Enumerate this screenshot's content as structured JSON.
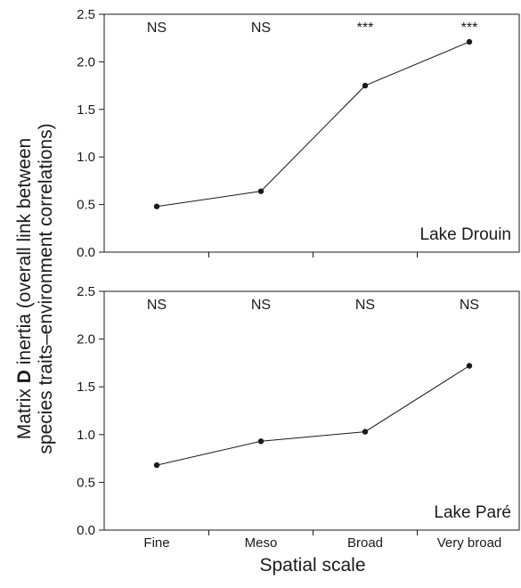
{
  "chart_data": [
    {
      "type": "line",
      "categories": [
        "Fine",
        "Meso",
        "Broad",
        "Very broad"
      ],
      "values": [
        0.48,
        0.64,
        1.75,
        2.21
      ],
      "significance": [
        "NS",
        "NS",
        "***",
        "***"
      ],
      "panel_label": "Lake Drouin",
      "ylim": [
        0,
        2.5
      ],
      "yticks": [
        "0.0",
        "0.5",
        "1.0",
        "1.5",
        "2.0",
        "2.5"
      ],
      "show_x_tick_labels": false
    },
    {
      "type": "line",
      "categories": [
        "Fine",
        "Meso",
        "Broad",
        "Very broad"
      ],
      "values": [
        0.68,
        0.93,
        1.03,
        1.72
      ],
      "significance": [
        "NS",
        "NS",
        "NS",
        "NS"
      ],
      "panel_label": "Lake Paré",
      "ylim": [
        0,
        2.5
      ],
      "yticks": [
        "0.0",
        "0.5",
        "1.0",
        "1.5",
        "2.0",
        "2.5"
      ],
      "show_x_tick_labels": true
    }
  ],
  "axes": {
    "ylabel_line1_prefix": "Matrix ",
    "ylabel_line1_bold": "D",
    "ylabel_line1_suffix": " inertia (overall link between",
    "ylabel_line2": "species traits–environment correlations)",
    "xlabel": "Spatial scale"
  },
  "style": {
    "line_color": "#1a1a1a",
    "marker_color": "#1a1a1a",
    "axis_color": "#1a1a1a"
  }
}
